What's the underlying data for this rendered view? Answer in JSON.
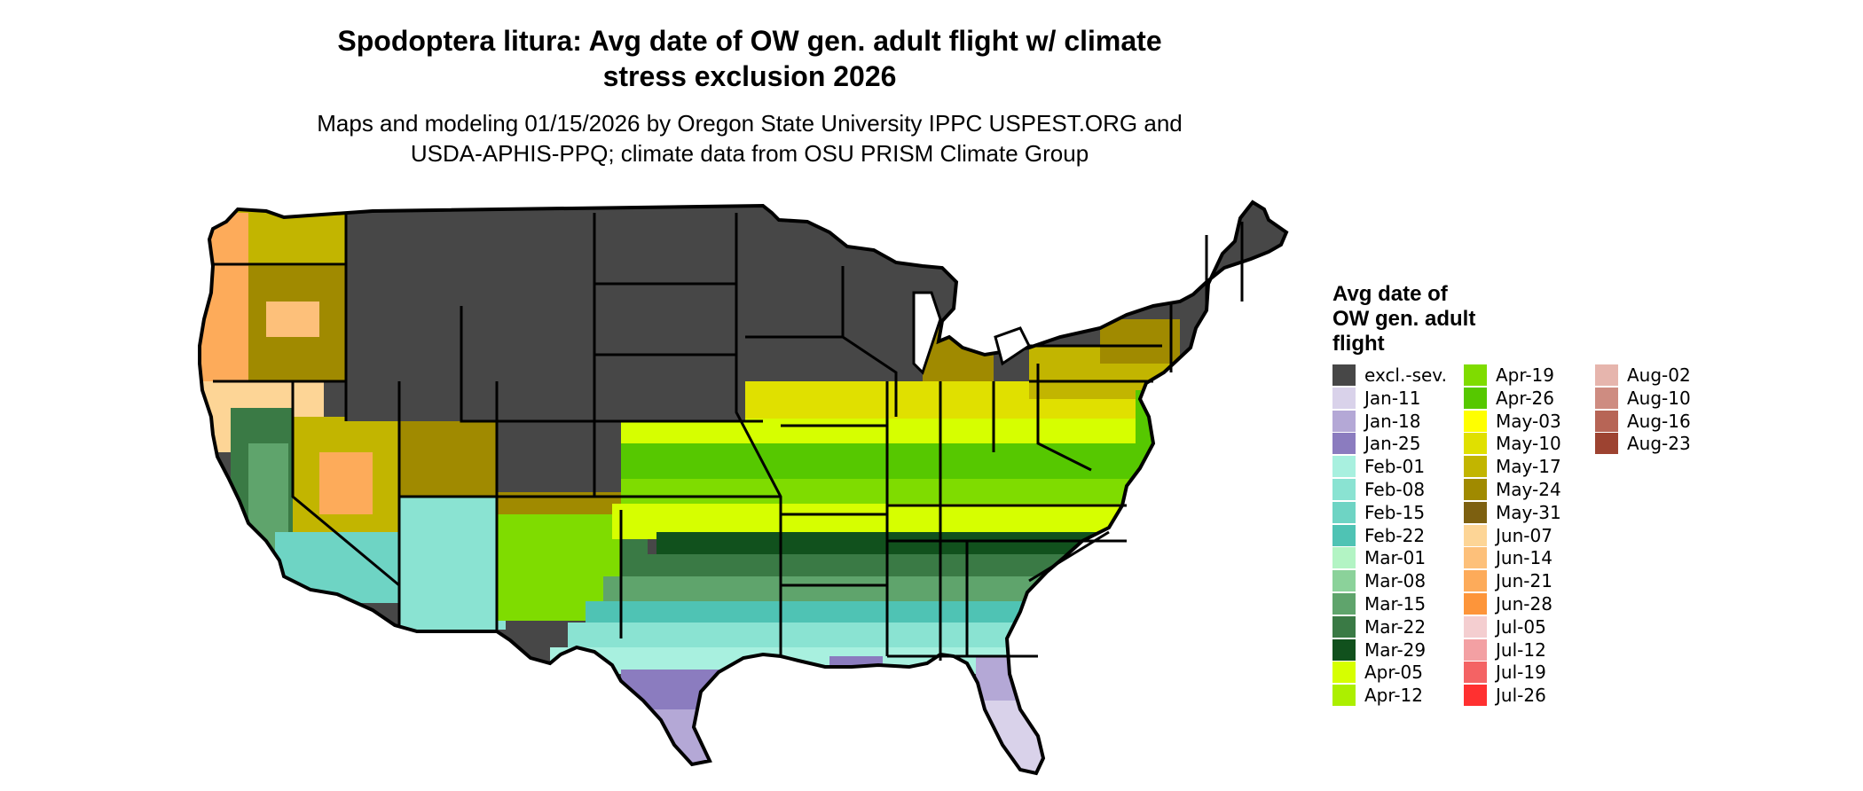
{
  "title_line1": "Spodoptera litura: Avg date of OW gen. adult flight w/ climate",
  "title_line2": "stress exclusion 2026",
  "subtitle_line1": "Maps and modeling 01/15/2026 by Oregon State University IPPC USPEST.ORG and",
  "subtitle_line2": "USDA-APHIS-PPQ; climate data from OSU PRISM Climate Group",
  "legend_title_line1": "Avg date of",
  "legend_title_line2": "OW gen. adult",
  "legend_title_line3": "flight",
  "legend_items": [
    {
      "label": "excl.-sev.",
      "color": "#474747"
    },
    {
      "label": "Jan-11",
      "color": "#d9d2ea"
    },
    {
      "label": "Jan-18",
      "color": "#b4a8d6"
    },
    {
      "label": "Jan-25",
      "color": "#8b7cbf"
    },
    {
      "label": "Feb-01",
      "color": "#a8f0df"
    },
    {
      "label": "Feb-08",
      "color": "#8ae3d2"
    },
    {
      "label": "Feb-15",
      "color": "#6ed4c4"
    },
    {
      "label": "Feb-22",
      "color": "#4fc3b4"
    },
    {
      "label": "Mar-01",
      "color": "#b3f4c4"
    },
    {
      "label": "Mar-08",
      "color": "#8bd29a"
    },
    {
      "label": "Mar-15",
      "color": "#5fa46c"
    },
    {
      "label": "Mar-22",
      "color": "#3a7a45"
    },
    {
      "label": "Mar-29",
      "color": "#11511d"
    },
    {
      "label": "Apr-05",
      "color": "#d6ff00"
    },
    {
      "label": "Apr-12",
      "color": "#acef00"
    },
    {
      "label": "Apr-19",
      "color": "#7fdc00"
    },
    {
      "label": "Apr-26",
      "color": "#56c800"
    },
    {
      "label": "May-03",
      "color": "#ffff00"
    },
    {
      "label": "May-10",
      "color": "#e0e000"
    },
    {
      "label": "May-17",
      "color": "#c2b500"
    },
    {
      "label": "May-24",
      "color": "#a08a00"
    },
    {
      "label": "May-31",
      "color": "#7d6010"
    },
    {
      "label": "Jun-07",
      "color": "#fdd596"
    },
    {
      "label": "Jun-14",
      "color": "#fdc07a"
    },
    {
      "label": "Jun-21",
      "color": "#fdab5a"
    },
    {
      "label": "Jun-28",
      "color": "#fd953a"
    },
    {
      "label": "Jul-05",
      "color": "#f4ced0"
    },
    {
      "label": "Jul-12",
      "color": "#f3a0a3"
    },
    {
      "label": "Jul-19",
      "color": "#f46364"
    },
    {
      "label": "Jul-26",
      "color": "#ff3030"
    },
    {
      "label": "Aug-02",
      "color": "#e6b5ad"
    },
    {
      "label": "Aug-10",
      "color": "#ce8c81"
    },
    {
      "label": "Aug-16",
      "color": "#b76556"
    },
    {
      "label": "Aug-23",
      "color": "#9d4331"
    }
  ],
  "map_colors": {
    "excluded": "#474747",
    "boundary": "#000000"
  }
}
